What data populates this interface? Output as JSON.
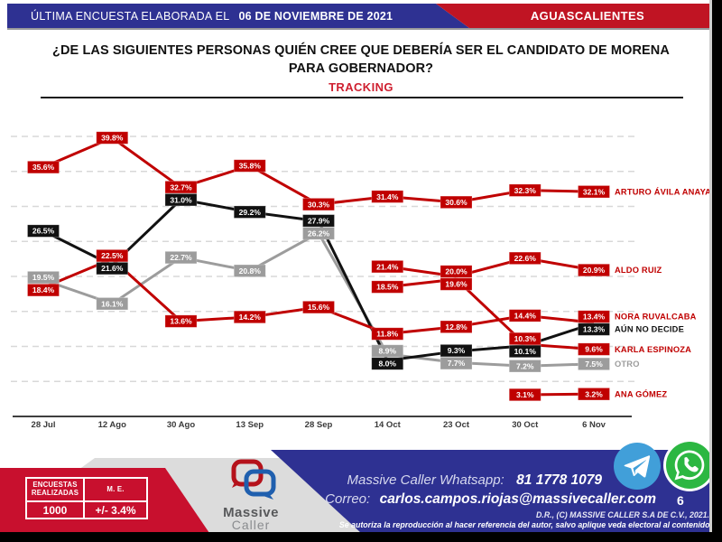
{
  "header": {
    "left_label": "ÚLTIMA ENCUESTA ELABORADA EL",
    "left_date": "06 DE NOVIEMBRE DE 2021",
    "region": "AGUASCALIENTES"
  },
  "title": {
    "question": "¿DE LAS SIGUIENTES PERSONAS QUIÉN CREE QUE DEBERÍA SER EL CANDIDATO DE MORENA PARA GOBERNADOR?",
    "subtitle": "TRACKING"
  },
  "chart_data": {
    "type": "line",
    "title": "¿De las siguientes personas quién cree que debería ser el candidato de MORENA para gobernador?",
    "subtitle": "TRACKING",
    "categories": [
      "28 Jul",
      "12 Ago",
      "30 Ago",
      "13 Sep",
      "28 Sep",
      "14 Oct",
      "23 Oct",
      "30 Oct",
      "6 Nov"
    ],
    "unit": "%",
    "ylim": [
      0,
      45
    ],
    "grid": "horizontal-dashed-every-5",
    "legend_position": "right-inline-labels",
    "series": [
      {
        "name": "ARTURO ÁVILA ANAYA",
        "color": "#c00000",
        "values": [
          35.6,
          39.8,
          32.7,
          35.8,
          30.3,
          31.4,
          30.6,
          32.3,
          32.1
        ]
      },
      {
        "name": "ALDO RUIZ",
        "color": "#c00000",
        "values": [
          null,
          null,
          null,
          null,
          null,
          21.4,
          20.0,
          22.6,
          20.9
        ]
      },
      {
        "name": "NORA RUVALCABA",
        "color": "#c00000",
        "values": [
          18.4,
          22.5,
          13.6,
          14.2,
          15.6,
          11.8,
          12.8,
          14.4,
          13.4
        ]
      },
      {
        "name": "AÚN NO DECIDE",
        "color": "#111111",
        "values": [
          26.5,
          21.6,
          31.0,
          29.2,
          27.9,
          8.0,
          9.3,
          10.1,
          13.3
        ]
      },
      {
        "name": "KARLA ESPINOZA",
        "color": "#c00000",
        "values": [
          null,
          null,
          null,
          null,
          null,
          18.5,
          19.6,
          10.3,
          9.6
        ]
      },
      {
        "name": "OTRO",
        "color": "#9c9c9c",
        "values": [
          19.5,
          16.1,
          22.7,
          20.8,
          26.2,
          8.9,
          7.7,
          7.2,
          7.5
        ]
      },
      {
        "name": "ANA GÓMEZ",
        "color": "#c00000",
        "values": [
          null,
          null,
          null,
          null,
          null,
          null,
          null,
          3.1,
          3.2
        ]
      }
    ]
  },
  "footer": {
    "stats": {
      "col1_header": "ENCUESTAS REALIZADAS",
      "col2_header": "M. E.",
      "col1_value": "1000",
      "col2_value": "+/- 3.4%"
    },
    "logo": {
      "line1": "Massive",
      "line2": "Caller"
    },
    "whatsapp_label": "Massive Caller Whatsapp:",
    "whatsapp_number": "81 1778 1079",
    "correo_label": "Correo:",
    "email": "carlos.campos.riojas@massivecaller.com",
    "page_number": "6",
    "copyright": "D.R., (C) MASSIVE CALLER S.A DE C.V., 2021.",
    "disclaimer": "Se autoriza la reproducción al hacer referencia del autor, salvo aplique veda electoral al contenido."
  },
  "icons": {
    "telegram": "telegram-icon",
    "whatsapp": "whatsapp-icon"
  },
  "colors": {
    "header_blue": "#2e3192",
    "header_red": "#c01423",
    "footer_blue": "#2e3192",
    "footer_red": "#c8102e",
    "series_red": "#c00000",
    "series_black": "#111111",
    "series_gray": "#9c9c9c",
    "tracking_red": "#cf2030"
  }
}
